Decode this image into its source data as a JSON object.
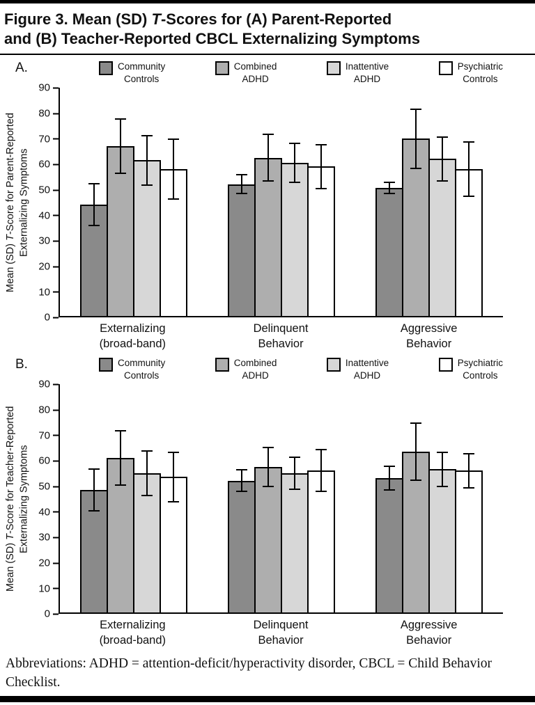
{
  "title": {
    "pre": "Figure 3. Mean (SD) ",
    "italic": "T",
    "line1_rest": "-Scores for (A) Parent-Reported",
    "line2": "and (B) Teacher-Reported CBCL Externalizing Symptoms"
  },
  "footnote": "Abbreviations: ADHD = attention-deficit/hyperactivity disorder, CBCL = Child Behavior Checklist.",
  "colors": {
    "community_controls": "#8a8a8a",
    "combined_adhd": "#aeaeae",
    "inattentive_adhd": "#d7d7d7",
    "psychiatric_controls": "#ffffff",
    "axis_and_borders": "#000000"
  },
  "chart_data": [
    {
      "type": "bar",
      "panel_label": "A.",
      "ylabel_pre": "Mean (SD) ",
      "ylabel_italic": "T",
      "ylabel_post": "-Score for Parent-Reported Externalizing Symptoms",
      "ylim": [
        0,
        90
      ],
      "yticks": [
        0,
        10,
        20,
        30,
        40,
        50,
        60,
        70,
        80,
        90
      ],
      "legend_position": "top",
      "grid": false,
      "error_bars": "standard deviation",
      "categories": [
        "Externalizing\n(broad-band)",
        "Delinquent\nBehavior",
        "Aggressive\nBehavior"
      ],
      "series": [
        {
          "name": "Community\nControls",
          "color": "#8a8a8a",
          "values": [
            44.0,
            52.0,
            50.5
          ],
          "sd": [
            8.5,
            4.0,
            2.5
          ]
        },
        {
          "name": "Combined\nADHD",
          "color": "#aeaeae",
          "values": [
            67.0,
            62.5,
            70.0
          ],
          "sd": [
            11.0,
            9.5,
            12.0
          ]
        },
        {
          "name": "Inattentive\nADHD",
          "color": "#d7d7d7",
          "values": [
            61.5,
            60.5,
            62.0
          ],
          "sd": [
            10.0,
            8.0,
            9.0
          ]
        },
        {
          "name": "Psychiatric\nControls",
          "color": "#ffffff",
          "values": [
            58.0,
            59.0,
            58.0
          ],
          "sd": [
            12.0,
            9.0,
            11.0
          ]
        }
      ]
    },
    {
      "type": "bar",
      "panel_label": "B.",
      "ylabel_pre": "Mean (SD) ",
      "ylabel_italic": "T",
      "ylabel_post": "-Score for Teacher-Reported Externalizing Symptoms",
      "ylim": [
        0,
        90
      ],
      "yticks": [
        0,
        10,
        20,
        30,
        40,
        50,
        60,
        70,
        80,
        90
      ],
      "legend_position": "top",
      "grid": false,
      "error_bars": "standard deviation",
      "categories": [
        "Externalizing\n(broad-band)",
        "Delinquent\nBehavior",
        "Aggressive\nBehavior"
      ],
      "series": [
        {
          "name": "Community\nControls",
          "color": "#8a8a8a",
          "values": [
            48.5,
            52.0,
            53.0
          ],
          "sd": [
            8.5,
            4.5,
            5.0
          ]
        },
        {
          "name": "Combined\nADHD",
          "color": "#aeaeae",
          "values": [
            61.0,
            57.5,
            63.5
          ],
          "sd": [
            11.0,
            8.0,
            11.5
          ]
        },
        {
          "name": "Inattentive\nADHD",
          "color": "#d7d7d7",
          "values": [
            55.0,
            55.0,
            56.5
          ],
          "sd": [
            9.0,
            6.5,
            7.0
          ]
        },
        {
          "name": "Psychiatric\nControls",
          "color": "#ffffff",
          "values": [
            53.5,
            56.0,
            56.0
          ],
          "sd": [
            10.0,
            8.5,
            7.0
          ]
        }
      ]
    }
  ]
}
